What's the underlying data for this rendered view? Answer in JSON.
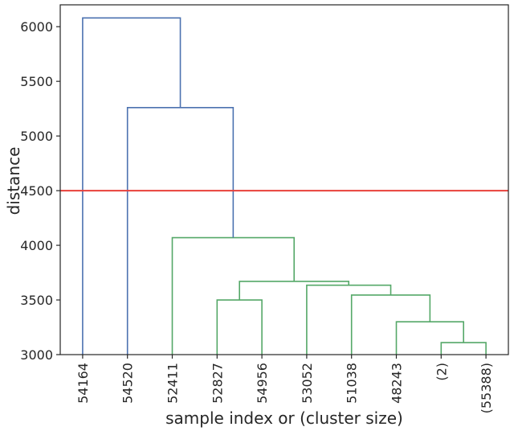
{
  "chart_data": {
    "type": "dendrogram",
    "xlabel": "sample index or (cluster size)",
    "ylabel": "distance",
    "ylim": [
      3000,
      6200
    ],
    "yticks": [
      3000,
      3500,
      4000,
      4500,
      5000,
      5500,
      6000
    ],
    "leaves": [
      "54164",
      "54520",
      "52411",
      "52827",
      "54956",
      "53052",
      "51038",
      "48243",
      "(2)",
      "(55388)"
    ],
    "threshold": {
      "value": 4500,
      "color": "#e8403a"
    },
    "colors": {
      "above": "#4c72b0",
      "cluster": "#55a868"
    },
    "links": [
      {
        "left": 8,
        "right": 9,
        "height": 3110,
        "color": "cluster"
      },
      {
        "left": 7,
        "right": 8.5,
        "height": 3300,
        "color": "cluster"
      },
      {
        "left": 6,
        "right": 7.75,
        "height": 3545,
        "color": "cluster"
      },
      {
        "left": 5,
        "right": 6.875,
        "height": 3635,
        "color": "cluster"
      },
      {
        "left": 3,
        "right": 4,
        "height": 3500,
        "color": "cluster"
      },
      {
        "left": 3.5,
        "right": 5.9375,
        "height": 3670,
        "color": "cluster"
      },
      {
        "left": 2,
        "right": 4.71875,
        "height": 4070,
        "color": "cluster"
      },
      {
        "left": 1,
        "right": 3.359375,
        "height": 5260,
        "color": "above"
      },
      {
        "left": 0,
        "right": 2.1796875,
        "height": 6080,
        "color": "above"
      }
    ]
  }
}
